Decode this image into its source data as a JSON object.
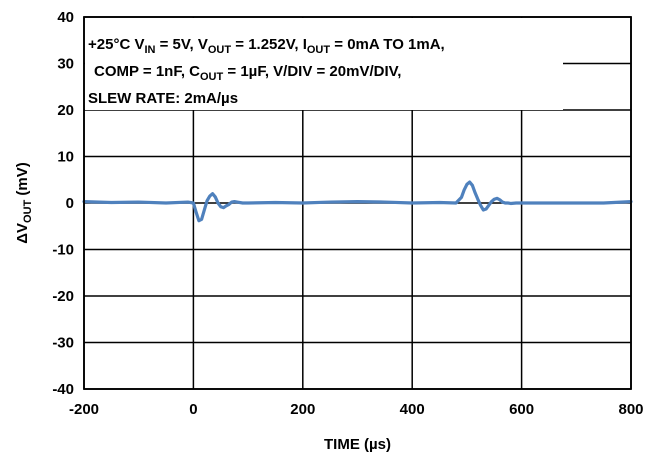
{
  "chart_data": {
    "type": "line",
    "title": "",
    "xlabel": "TIME (µs)",
    "ylabel": "ΔVOUT (mV)",
    "ylabel_parts": [
      "ΔV",
      "OUT",
      " (mV)"
    ],
    "xlim": [
      -200,
      800
    ],
    "ylim": [
      -40,
      40
    ],
    "xticks": [
      -200,
      0,
      200,
      400,
      600,
      800
    ],
    "yticks": [
      40,
      30,
      20,
      10,
      0,
      -10,
      -20,
      -30,
      -40
    ],
    "grid": true,
    "line_color": "#4f81bd",
    "annotation_lines": [
      "+25°C VIN = 5V, VOUT = 1.252V, IOUT = 0mA TO 1mA,",
      "COMP = 1nF, COUT = 1µF, V/DIV = 20mV/DIV,",
      "SLEW RATE: 2mA/µs"
    ],
    "annotation_runs": [
      [
        [
          "+25°C V",
          "n"
        ],
        [
          "IN",
          "s"
        ],
        [
          " = 5V, V",
          "n"
        ],
        [
          "OUT",
          "s"
        ],
        [
          " = 1.252V, I",
          "n"
        ],
        [
          "OUT",
          "s"
        ],
        [
          " = 0mA TO 1mA,",
          "n"
        ]
      ],
      [
        [
          "COMP = 1nF, C",
          "n"
        ],
        [
          "OUT",
          "s"
        ],
        [
          " = 1µF, V/DIV = 20mV/DIV,",
          "n"
        ]
      ],
      [
        [
          "SLEW RATE: 2mA/µs",
          "n"
        ]
      ]
    ],
    "series": [
      {
        "x": [
          -200,
          -150,
          -100,
          -50,
          -10,
          0,
          5,
          10,
          15,
          20,
          25,
          30,
          35,
          40,
          45,
          50,
          55,
          60,
          65,
          70,
          75,
          80,
          90,
          100,
          150,
          200,
          250,
          300,
          350,
          400,
          450,
          480,
          490,
          495,
          500,
          505,
          510,
          515,
          520,
          525,
          530,
          535,
          540,
          545,
          550,
          555,
          560,
          565,
          570,
          575,
          580,
          590,
          600,
          650,
          700,
          750,
          800
        ],
        "y": [
          0.3,
          0.1,
          0.2,
          0.0,
          0.2,
          0.0,
          -2.0,
          -3.8,
          -3.5,
          -1.5,
          0.5,
          1.5,
          2.0,
          1.3,
          0.0,
          -0.8,
          -1.0,
          -0.6,
          -0.3,
          0.2,
          0.3,
          0.2,
          0.0,
          0.0,
          0.1,
          0.0,
          0.2,
          0.3,
          0.2,
          0.0,
          0.1,
          0.0,
          1.2,
          2.8,
          4.0,
          4.5,
          3.8,
          2.2,
          0.8,
          -0.5,
          -1.5,
          -1.3,
          -0.5,
          0.3,
          0.8,
          1.0,
          0.7,
          0.2,
          0.0,
          0.0,
          -0.1,
          0.0,
          0.0,
          0.0,
          0.0,
          0.0,
          0.3
        ]
      }
    ]
  }
}
